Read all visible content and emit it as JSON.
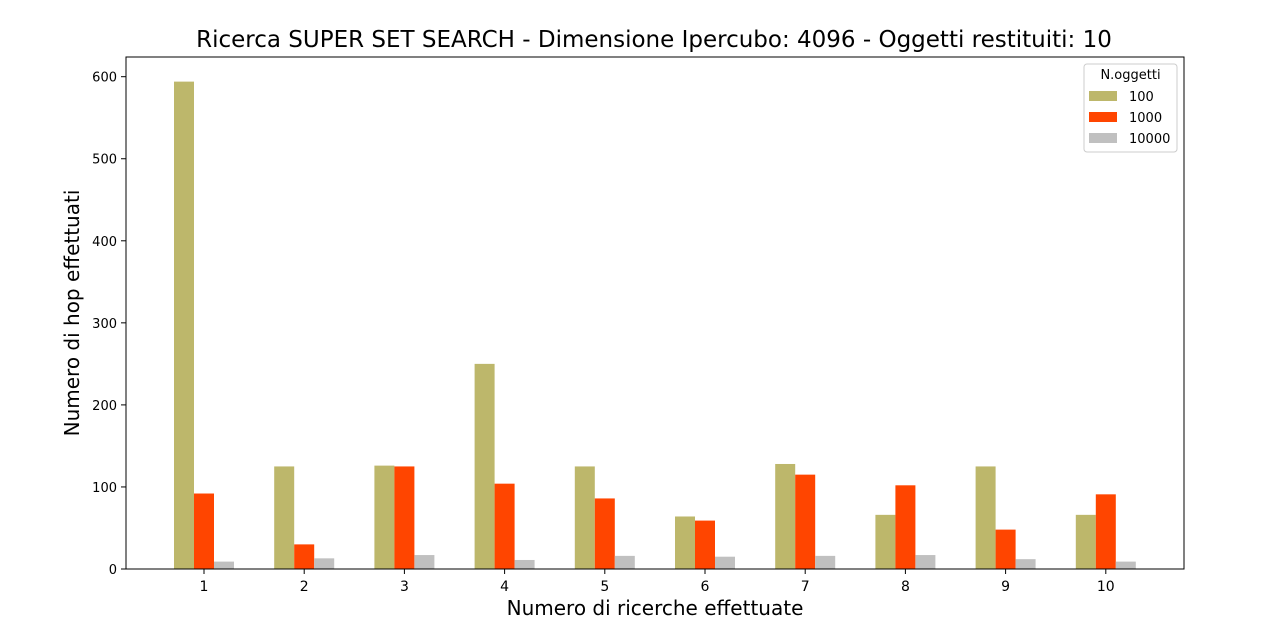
{
  "chart_data": {
    "type": "bar",
    "title": "Ricerca SUPER SET SEARCH - Dimensione Ipercubo: 4096 - Oggetti restituiti: 10",
    "xlabel": "Numero di ricerche effettuate",
    "ylabel": "Numero di hop effettuati",
    "categories": [
      "1",
      "2",
      "3",
      "4",
      "5",
      "6",
      "7",
      "8",
      "9",
      "10"
    ],
    "yticks": [
      "0",
      "100",
      "200",
      "300",
      "400",
      "500",
      "600"
    ],
    "ylim": [
      0,
      624
    ],
    "grid": false,
    "legend": {
      "title": "N.oggetti",
      "placement": "top-right"
    },
    "series": [
      {
        "name": "100",
        "color": "#bdb76b",
        "values": [
          594,
          125,
          126,
          250,
          125,
          64,
          128,
          66,
          125,
          66
        ]
      },
      {
        "name": "1000",
        "color": "#ff4500",
        "values": [
          92,
          30,
          125,
          104,
          86,
          59,
          115,
          102,
          48,
          91
        ]
      },
      {
        "name": "10000",
        "color": "#c0c0c0",
        "values": [
          9,
          13,
          17,
          11,
          16,
          15,
          16,
          17,
          12,
          9
        ]
      }
    ]
  }
}
